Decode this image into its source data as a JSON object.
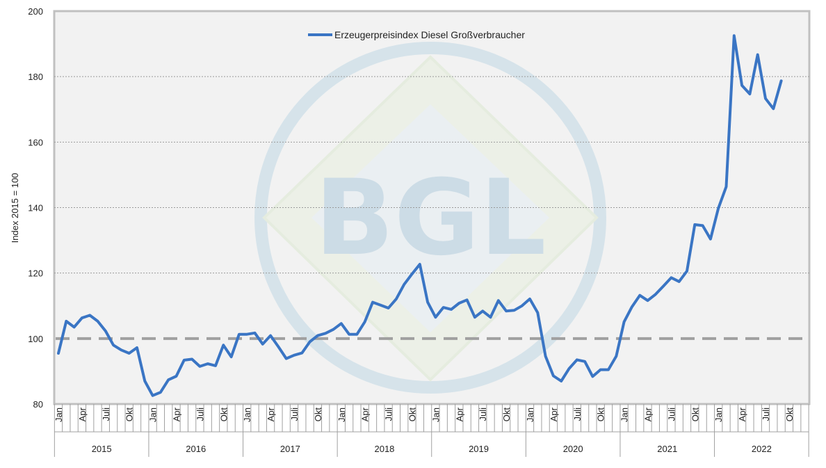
{
  "chart_data": {
    "type": "line",
    "title": "",
    "ylabel": "Index 2015 = 100",
    "ylim": [
      80,
      200
    ],
    "yticks": [
      80,
      100,
      120,
      140,
      160,
      180,
      200
    ],
    "reference_line": 100,
    "watermark": "BGL",
    "grid": "horizontal",
    "legend_position": "top-center",
    "years": [
      "2015",
      "2016",
      "2017",
      "2018",
      "2019",
      "2020",
      "2021",
      "2022"
    ],
    "month_labels": [
      "Jan",
      "Apr",
      "Juli",
      "Okt"
    ],
    "x_start": "2015-01",
    "series": [
      {
        "name": "Erzeugerpreisindex Diesel Großverbraucher",
        "color": "#3a75c4",
        "values": [
          95.5,
          105.3,
          103.5,
          106.3,
          107.1,
          105.3,
          102.3,
          98.0,
          96.5,
          95.5,
          97.2,
          87.0,
          82.6,
          83.6,
          87.4,
          88.5,
          93.4,
          93.7,
          91.5,
          92.3,
          91.7,
          98.0,
          94.4,
          101.3,
          101.3,
          101.7,
          98.3,
          100.9,
          97.5,
          93.9,
          94.9,
          95.6,
          99.0,
          100.9,
          101.6,
          102.8,
          104.6,
          101.3,
          101.3,
          105.1,
          111.1,
          110.2,
          109.3,
          112.1,
          116.5,
          119.7,
          122.7,
          111.1,
          106.5,
          109.5,
          108.9,
          110.8,
          111.8,
          106.5,
          108.4,
          106.5,
          111.6,
          108.4,
          108.6,
          110.0,
          112.1,
          107.9,
          94.6,
          88.6,
          87.0,
          90.8,
          93.5,
          93.0,
          88.4,
          90.5,
          90.5,
          94.6,
          105.1,
          109.7,
          113.2,
          111.6,
          113.5,
          116.0,
          118.6,
          117.4,
          120.6,
          134.8,
          134.5,
          130.4,
          139.8,
          146.4,
          192.5,
          177.3,
          174.7,
          186.7,
          173.3,
          170.2,
          178.7
        ]
      }
    ]
  }
}
